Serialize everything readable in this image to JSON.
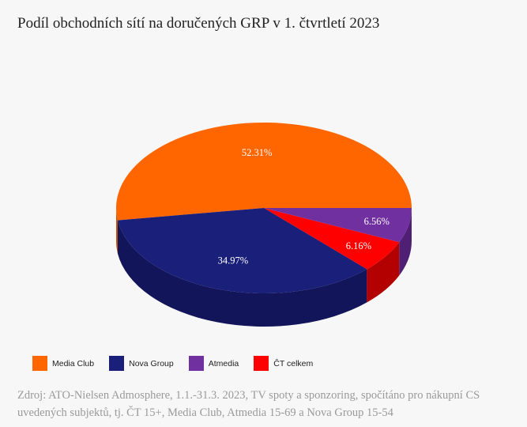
{
  "title": "Podíl obchodních sítí na doručených GRP v 1. čtvrtletí 2023",
  "source": "Zdroj: ATO-Nielsen Admosphere, 1.1.-31.3. 2023, TV spoty a sponzoring, spočítáno pro nákupní CS uvedených subjektů, tj. ČT 15+, Media Club, Atmedia 15-69 a Nova Group 15-54",
  "chart_data": {
    "type": "pie",
    "title": "Podíl obchodních sítí na doručených GRP v 1. čtvrtletí 2023",
    "style": "3d",
    "legend_position": "bottom-left",
    "slices": [
      {
        "name": "Media Club",
        "value": 52.31,
        "label": "52.31%",
        "color": "#ff6600",
        "side_color": "#c24f02"
      },
      {
        "name": "Nova Group",
        "value": 34.97,
        "label": "34.97%",
        "color": "#1a1f7a",
        "side_color": "#12155a"
      },
      {
        "name": "ČT celkem",
        "value": 6.16,
        "label": "6.16%",
        "color": "#ff0000",
        "side_color": "#b30000"
      },
      {
        "name": "Atmedia",
        "value": 6.56,
        "label": "6.56%",
        "color": "#7030a0",
        "side_color": "#4f1f73"
      }
    ]
  },
  "legend": [
    {
      "name": "Media Club",
      "color": "#ff6600"
    },
    {
      "name": "Nova Group",
      "color": "#1a1f7a"
    },
    {
      "name": "Atmedia",
      "color": "#7030a0"
    },
    {
      "name": "ČT celkem",
      "color": "#ff0000"
    }
  ]
}
